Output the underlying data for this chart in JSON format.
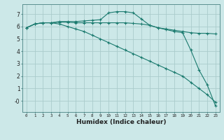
{
  "xlabel": "Humidex (Indice chaleur)",
  "ylabel": "",
  "background_color": "#cce8e8",
  "grid_color": "#aacccc",
  "line_color": "#1a7a6e",
  "xlim": [
    -0.5,
    23.5
  ],
  "ylim": [
    -0.9,
    7.8
  ],
  "xticks": [
    0,
    1,
    2,
    3,
    4,
    5,
    6,
    7,
    8,
    9,
    10,
    11,
    12,
    13,
    14,
    15,
    16,
    17,
    18,
    19,
    20,
    21,
    22,
    23
  ],
  "yticks": [
    0,
    1,
    2,
    3,
    4,
    5,
    6,
    7
  ],
  "ytick_labels": [
    "-0",
    "1",
    "2",
    "3",
    "4",
    "5",
    "6",
    "7"
  ],
  "series": [
    {
      "x": [
        0,
        1,
        2,
        3,
        4,
        5,
        6,
        7,
        8,
        9,
        10,
        11,
        12,
        13,
        14,
        15,
        16,
        17,
        18,
        19,
        20,
        21,
        22,
        23
      ],
      "y": [
        5.9,
        6.2,
        6.3,
        6.3,
        6.4,
        6.4,
        6.4,
        6.45,
        6.5,
        6.55,
        7.1,
        7.2,
        7.2,
        7.1,
        6.6,
        6.1,
        5.9,
        5.75,
        5.6,
        5.5,
        4.1,
        2.5,
        1.3,
        -0.4
      ]
    },
    {
      "x": [
        0,
        1,
        2,
        3,
        4,
        5,
        6,
        7,
        8,
        9,
        10,
        11,
        12,
        13,
        14,
        15,
        16,
        17,
        18,
        19,
        20,
        21,
        22,
        23
      ],
      "y": [
        5.9,
        6.2,
        6.3,
        6.3,
        6.35,
        6.35,
        6.3,
        6.3,
        6.3,
        6.3,
        6.3,
        6.3,
        6.3,
        6.25,
        6.2,
        6.1,
        5.9,
        5.8,
        5.7,
        5.6,
        5.5,
        5.45,
        5.45,
        5.4
      ]
    },
    {
      "x": [
        0,
        1,
        2,
        3,
        4,
        5,
        6,
        7,
        8,
        9,
        10,
        11,
        12,
        13,
        14,
        15,
        16,
        17,
        18,
        19,
        20,
        21,
        22,
        23
      ],
      "y": [
        5.9,
        6.2,
        6.3,
        6.3,
        6.2,
        6.0,
        5.8,
        5.6,
        5.3,
        5.0,
        4.7,
        4.4,
        4.1,
        3.8,
        3.5,
        3.2,
        2.9,
        2.6,
        2.3,
        2.0,
        1.5,
        1.0,
        0.5,
        -0.1
      ]
    }
  ]
}
